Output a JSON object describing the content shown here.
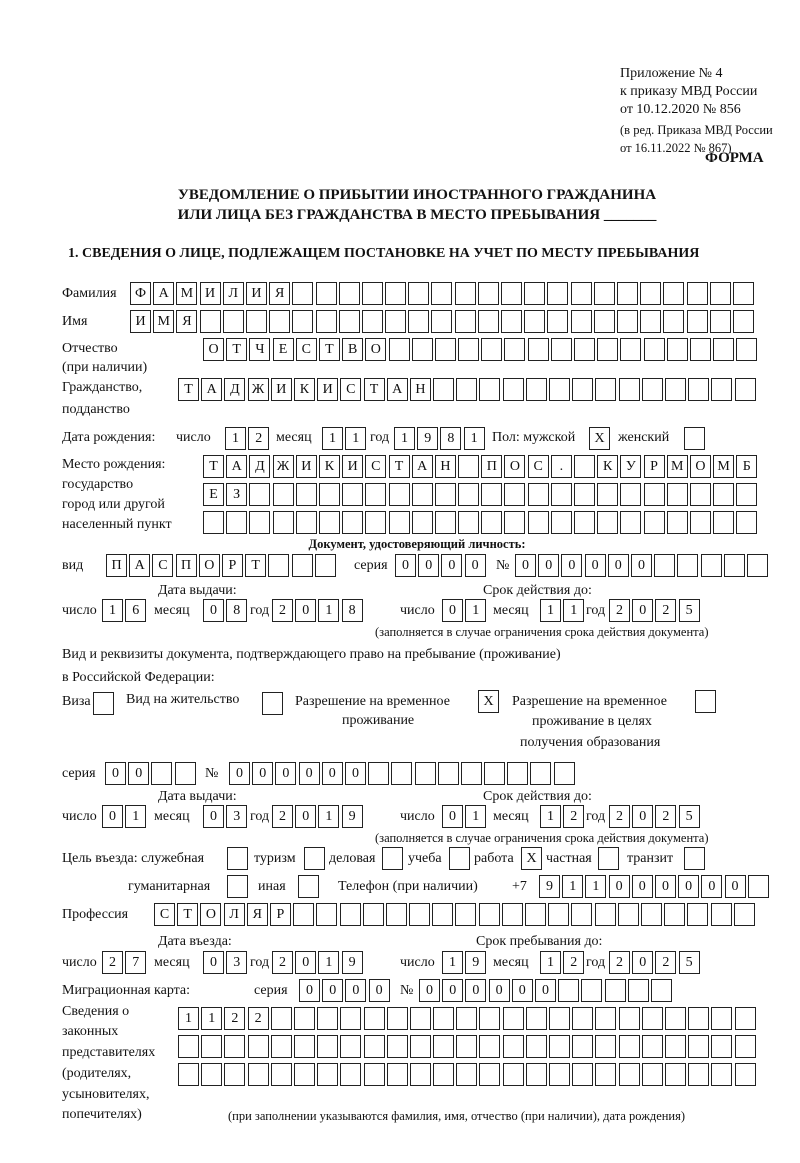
{
  "header": {
    "line1": "Приложение № 4",
    "line2": "к приказу МВД России",
    "line3": "от 10.12.2020 № 856",
    "line4": "(в ред. Приказа МВД России",
    "line5": "от 16.11.2022 № 867)",
    "form_label": "ФОРМА",
    "title1": "УВЕДОМЛЕНИЕ О ПРИБЫТИИ ИНОСТРАННОГО ГРАЖДАНИНА",
    "title2": "ИЛИ ЛИЦА БЕЗ ГРАЖДАНСТВА В МЕСТО ПРЕБЫВАНИЯ _______",
    "section1": "1. СВЕДЕНИЯ О ЛИЦЕ, ПОДЛЕЖАЩЕМ ПОСТАНОВКЕ НА УЧЕТ ПО МЕСТУ ПРЕБЫВАНИЯ"
  },
  "labels": {
    "surname": "Фамилия",
    "name": "Имя",
    "patronymic1": "Отчество",
    "patronymic2": "(при наличии)",
    "citizenship1": "Гражданство,",
    "citizenship2": "подданство",
    "birth_date": "Дата рождения:",
    "day": "число",
    "month": "месяц",
    "year": "год",
    "sex": "Пол: мужской",
    "female": "женский",
    "birthplace1": "Место рождения:",
    "birthplace2": "государство",
    "birthplace3": "город или другой",
    "birthplace4": "населенный пункт",
    "id_doc": "Документ, удостоверяющий личность:",
    "kind": "вид",
    "series": "серия",
    "number": "№",
    "issue_date": "Дата выдачи:",
    "valid_until": "Срок действия до:",
    "validity_note": "(заполняется в случае ограничения срока действия документа)",
    "stay_doc1": "Вид и реквизиты документа, подтверждающего право на пребывание (проживание)",
    "stay_doc2": "в Российской Федерации:",
    "visa": "Виза",
    "residence": "Вид на жительство",
    "trp1": "Разрешение на временное",
    "trp2": "проживание",
    "trp_edu1": "Разрешение на временное",
    "trp_edu2": "проживание в целях",
    "trp_edu3": "получения образования",
    "purpose": "Цель въезда: служебная",
    "tourism": "туризм",
    "business": "деловая",
    "study": "учеба",
    "work": "работа",
    "private": "частная",
    "transit": "транзит",
    "humanitarian": "гуманитарная",
    "other": "иная",
    "phone": "Телефон (при наличии)",
    "phone_prefix": "+7",
    "profession": "Профессия",
    "entry_date": "Дата въезда:",
    "stay_until": "Срок пребывания до:",
    "migration_card": "Миграционная карта:",
    "reps1": "Сведения о",
    "reps2": "законных",
    "reps3": "представителях",
    "reps4": "(родителях,",
    "reps5": "усыновителях,",
    "reps6": "попечителях)",
    "reps_note": "(при заполнении указываются фамилия, имя, отчество (при наличии), дата рождения)"
  },
  "values": {
    "surname": "ФАМИЛИЯ",
    "name": "ИМЯ",
    "patronymic": "ОТЧЕСТВО",
    "citizenship": "ТАДЖИКИСТАН",
    "birth_day": "12",
    "birth_month": "11",
    "birth_year": "1981",
    "sex_male": "X",
    "sex_female": "",
    "birthplace_1": "ТАДЖИКИСТАН ПОС. КУРМОМБ",
    "birthplace_2": "ЕЗ",
    "birthplace_3": "",
    "id_kind": "ПАСПОРТ",
    "id_series": "0000",
    "id_number": "000000",
    "id_issue_day": "16",
    "id_issue_month": "08",
    "id_issue_year": "2018",
    "id_valid_day": "01",
    "id_valid_month": "11",
    "id_valid_year": "2025",
    "visa": "",
    "residence": "",
    "trp": "X",
    "trp_edu": "",
    "stay_series": "00",
    "stay_number": "000000",
    "stay_issue_day": "01",
    "stay_issue_month": "03",
    "stay_issue_year": "2019",
    "stay_valid_day": "01",
    "stay_valid_month": "12",
    "stay_valid_year": "2025",
    "p_official": "",
    "p_tourism": "",
    "p_business": "",
    "p_study": "",
    "p_work": "X",
    "p_private": "",
    "p_transit": "",
    "p_humanitarian": "",
    "p_other": "",
    "phone": "911000000",
    "profession": "СТОЛЯР",
    "entry_day": "27",
    "entry_month": "03",
    "entry_year": "2019",
    "stay_day": "19",
    "stay_month": "12",
    "stay_year": "2025",
    "mc_series": "0000",
    "mc_number": "000000",
    "reps_1": "1122",
    "reps_2": "",
    "reps_3": ""
  }
}
